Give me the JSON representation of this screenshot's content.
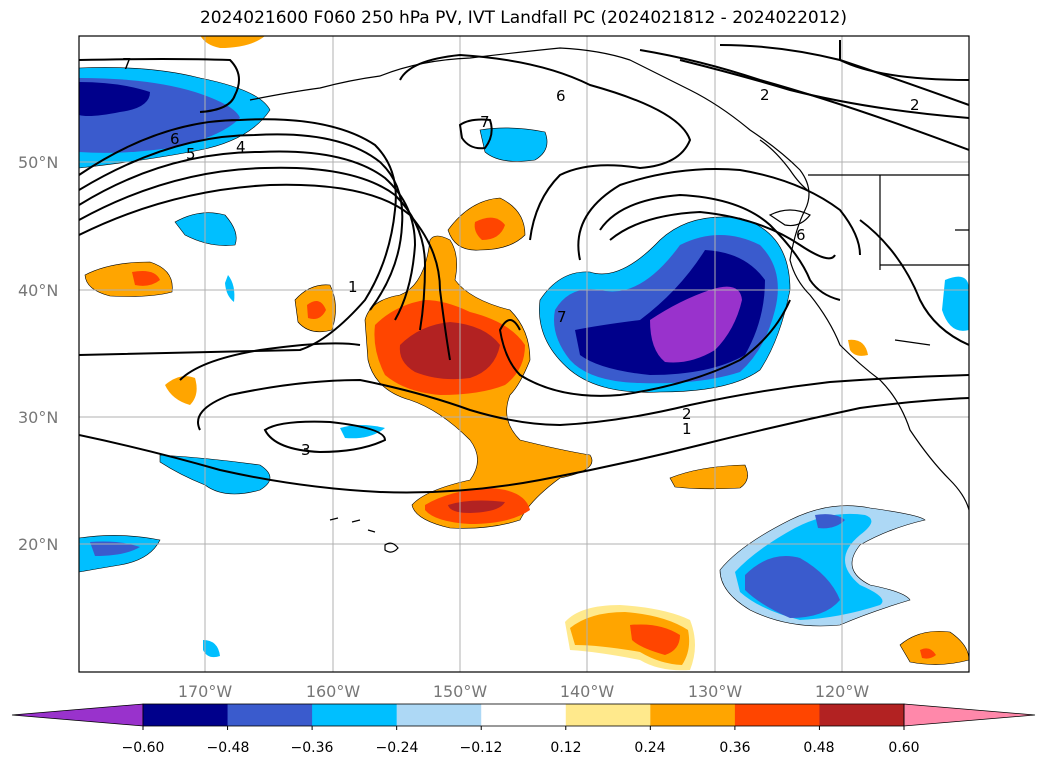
{
  "title": "2024021600 F060 250 hPa PV, IVT Landfall PC (2024021812 - 2024022012)",
  "lat_labels": [
    "50°N",
    "40°N",
    "30°N",
    "20°N"
  ],
  "lon_labels": [
    "170°W",
    "160°W",
    "150°W",
    "140°W",
    "130°W",
    "120°W"
  ],
  "colorbar": {
    "tick_labels": [
      "−0.60",
      "−0.48",
      "−0.36",
      "−0.24",
      "−0.12",
      "0.12",
      "0.24",
      "0.36",
      "0.48",
      "0.60"
    ],
    "colors": [
      "#9932cc",
      "#00008b",
      "#3a5bcd",
      "#00bfff",
      "#add8f5",
      "#ffffff",
      "#ffe98c",
      "#ffa500",
      "#ff4500",
      "#b22222",
      "#ff88aa"
    ]
  },
  "contour_labels": [
    "7",
    "6",
    "5",
    "4",
    "7",
    "6",
    "2",
    "2",
    "6",
    "1",
    "7",
    "2",
    "1",
    "3"
  ]
}
